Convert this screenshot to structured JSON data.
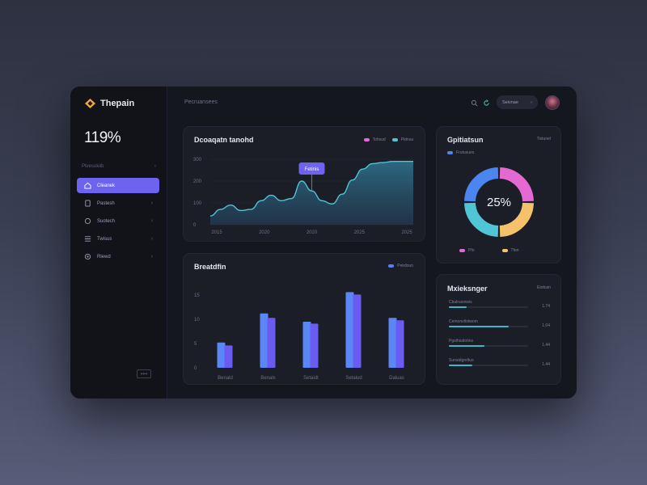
{
  "app": {
    "name": "Thepain",
    "big_stat": "119%"
  },
  "sidebar": {
    "heading": "Ptvesukiib",
    "heading_marker": "‹",
    "items": [
      {
        "label": "Cleanek",
        "icon": "home-icon",
        "active": true
      },
      {
        "label": "Pastesh",
        "icon": "document-icon",
        "active": false
      },
      {
        "label": "Suotech",
        "icon": "wallet-icon",
        "active": false
      },
      {
        "label": "Twisus",
        "icon": "list-icon",
        "active": false
      },
      {
        "label": "Riewd",
        "icon": "settings-icon",
        "active": false
      }
    ],
    "footer_button": "+++"
  },
  "topbar": {
    "title": "Pecruansees",
    "pill_label": "Seivnae",
    "pill_chevron": "›"
  },
  "line_card": {
    "title": "Dcoaqatn tanohd",
    "legend": [
      {
        "name": "Tohsud",
        "color": "#e46ad2"
      },
      {
        "name": "Pidnsa",
        "color": "#4fc5d6"
      }
    ],
    "tooltip": "Fetinis"
  },
  "donut_card": {
    "title": "Gpitiatsun",
    "header_right": "Tistunel",
    "legend_top": "Frutusues",
    "center_label": "25%",
    "legend_bottom": [
      {
        "name": "Pfo",
        "color": "#e46ad2"
      },
      {
        "name": "Tfen",
        "color": "#f5c26b"
      }
    ]
  },
  "bar_card": {
    "title": "Breatdfin",
    "legend": {
      "name": "Pekdoun",
      "color": "#5b7cf5"
    }
  },
  "metrics_card": {
    "title": "Mxieksnger",
    "header_right": "Etobuin",
    "rows": [
      {
        "label": "Cbulnaonwis",
        "value": "1.74",
        "fill": 0.22
      },
      {
        "label": "Cemonvtlotwom",
        "value": "1.04",
        "fill": 0.75
      },
      {
        "label": "Pgsthiudotins",
        "value": "1.44",
        "fill": 0.45
      },
      {
        "label": "Sunaidgreltus",
        "value": "1.44",
        "fill": 0.3
      }
    ]
  },
  "chart_data": [
    {
      "type": "area",
      "title": "Dcoaqatn tanohd",
      "y_ticks": [
        "300",
        "200",
        "100",
        "0"
      ],
      "x_ticks": [
        "2015",
        "2020",
        "2020",
        "2025",
        "2025"
      ],
      "ylim": [
        0,
        300
      ],
      "x": [
        0,
        0.5,
        1,
        1.5,
        2,
        2.5,
        3,
        3.5,
        4,
        4.5,
        5,
        5.5,
        6,
        6.5,
        7,
        7.5,
        8,
        8.5,
        9,
        9.5,
        10
      ],
      "series": [
        {
          "name": "Tohsud",
          "values": [
            40,
            70,
            90,
            65,
            70,
            110,
            135,
            110,
            120,
            200,
            155,
            110,
            95,
            140,
            205,
            255,
            280,
            285,
            290,
            290,
            290
          ]
        }
      ],
      "tooltip_at_x": 5,
      "grid": true
    },
    {
      "type": "pie",
      "title": "Gpitiatsun",
      "center_label": "25%",
      "slices": [
        {
          "name": "Pfo",
          "value": 25,
          "color": "#e46ad2"
        },
        {
          "name": "Tfen",
          "value": 25,
          "color": "#f5c26b"
        },
        {
          "value": 25,
          "color": "#4fc5d6"
        },
        {
          "value": 25,
          "color": "#4b86f0"
        }
      ]
    },
    {
      "type": "bar",
      "title": "Breatdfin",
      "categories": [
        "Benald",
        "Benals",
        "Setaidt",
        "Setalud",
        "Daluas"
      ],
      "y_ticks": [
        "15",
        "10",
        "5",
        "0"
      ],
      "ylim": [
        0,
        16
      ],
      "series": [
        {
          "name": "Pekdoun",
          "values": [
            5.2,
            11.2,
            9.5,
            15.6,
            10.3
          ]
        },
        {
          "values": [
            4.6,
            10.3,
            9.1,
            15.1,
            9.8
          ]
        }
      ]
    }
  ]
}
